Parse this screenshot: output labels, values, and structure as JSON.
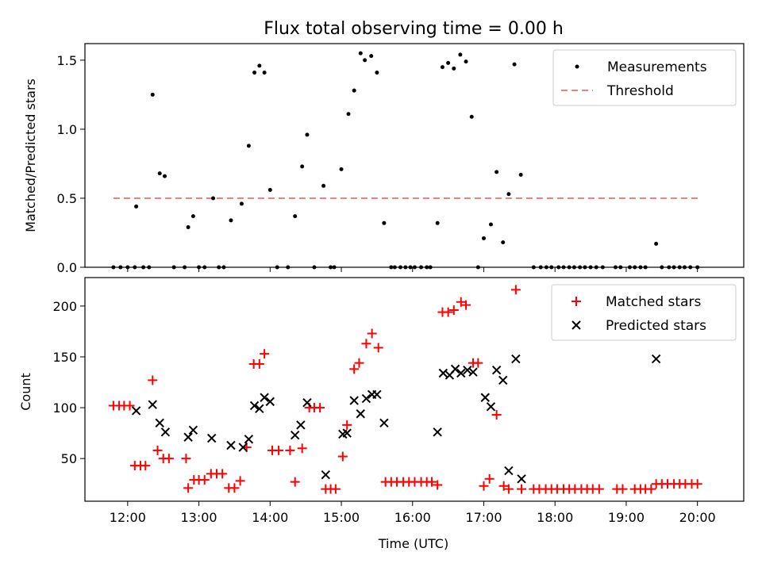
{
  "chart_data": [
    {
      "type": "scatter",
      "title": "Flux total observing time = 0.00 h",
      "xlabel": "",
      "ylabel": "Matched/Predicted stars",
      "x_range_hours": [
        11.4,
        20.65
      ],
      "ylim": [
        0,
        1.62
      ],
      "yticks": [
        0.0,
        0.5,
        1.0,
        1.5
      ],
      "ytick_labels": [
        "0.0",
        "0.5",
        "1.0",
        "1.5"
      ],
      "grid": false,
      "legend_position": "top-right",
      "threshold": {
        "name": "Threshold",
        "value": 0.5,
        "x_start": 11.8,
        "x_end": 20.05,
        "color": "#f08080"
      },
      "series": [
        {
          "name": "Measurements",
          "color": "#000000",
          "x": [
            11.8,
            11.9,
            12.0,
            12.1,
            12.12,
            12.22,
            12.3,
            12.35,
            12.45,
            12.52,
            12.65,
            12.8,
            12.85,
            12.92,
            13.0,
            13.08,
            13.2,
            13.28,
            13.35,
            13.45,
            13.6,
            13.7,
            13.78,
            13.85,
            13.92,
            14.0,
            14.1,
            14.25,
            14.35,
            14.45,
            14.52,
            14.62,
            14.75,
            14.85,
            14.9,
            15.0,
            15.1,
            15.18,
            15.27,
            15.33,
            15.42,
            15.5,
            15.6,
            15.7,
            15.75,
            15.83,
            15.9,
            15.97,
            16.03,
            16.12,
            16.2,
            16.25,
            16.35,
            16.42,
            16.5,
            16.58,
            16.67,
            16.75,
            16.83,
            16.92,
            17.0,
            17.1,
            17.18,
            17.27,
            17.35,
            17.43,
            17.52,
            17.7,
            17.8,
            17.88,
            17.95,
            18.05,
            18.12,
            18.2,
            18.27,
            18.35,
            18.42,
            18.5,
            18.58,
            18.67,
            18.85,
            18.92,
            19.05,
            19.12,
            19.2,
            19.27,
            19.42,
            19.5,
            19.6,
            19.67,
            19.75,
            19.82,
            19.9,
            20.0
          ],
          "y": [
            0,
            0,
            0,
            0,
            0.44,
            0,
            0,
            1.25,
            0.68,
            0.66,
            0,
            0,
            0.29,
            0.37,
            0,
            0,
            0.5,
            0,
            0,
            0.34,
            0.46,
            0.88,
            1.41,
            1.46,
            1.41,
            0.56,
            0,
            0,
            0.37,
            0.73,
            0.96,
            0,
            0.59,
            0,
            0,
            0.71,
            1.11,
            1.28,
            1.55,
            1.5,
            1.53,
            1.41,
            0.32,
            0,
            0,
            0,
            0,
            0,
            0,
            0,
            0,
            0,
            0.32,
            1.45,
            1.48,
            1.44,
            1.54,
            1.49,
            1.09,
            0,
            0.21,
            0.31,
            0.69,
            0.18,
            0.53,
            1.47,
            0.67,
            0,
            0,
            0,
            0,
            0,
            0,
            0,
            0,
            0,
            0,
            0,
            0,
            0,
            0,
            0,
            0,
            0,
            0,
            0,
            0.17,
            0,
            0,
            0,
            0,
            0,
            0,
            0
          ]
        }
      ]
    },
    {
      "type": "scatter",
      "title": "",
      "xlabel": "Time (UTC)",
      "ylabel": "Count",
      "x_range_hours": [
        11.4,
        20.65
      ],
      "ylim": [
        8,
        228
      ],
      "yticks": [
        50,
        100,
        150,
        200
      ],
      "ytick_labels": [
        "50",
        "100",
        "150",
        "200"
      ],
      "xticks": [
        12,
        13,
        14,
        15,
        16,
        17,
        18,
        19,
        20
      ],
      "xtick_labels": [
        "12:00",
        "13:00",
        "14:00",
        "15:00",
        "16:00",
        "17:00",
        "18:00",
        "19:00",
        "20:00"
      ],
      "grid": false,
      "legend_position": "top-right",
      "series": [
        {
          "name": "Matched stars",
          "marker": "+",
          "color": "#ff0000",
          "x": [
            11.8,
            11.88,
            11.95,
            12.03,
            12.1,
            12.18,
            12.25,
            12.35,
            12.42,
            12.5,
            12.58,
            12.82,
            12.85,
            12.93,
            13.0,
            13.08,
            13.17,
            13.25,
            13.33,
            13.42,
            13.5,
            13.58,
            13.67,
            13.77,
            13.85,
            13.92,
            14.03,
            14.12,
            14.28,
            14.35,
            14.45,
            14.55,
            14.62,
            14.7,
            14.78,
            14.85,
            14.92,
            15.02,
            15.08,
            15.18,
            15.25,
            15.35,
            15.43,
            15.52,
            15.62,
            15.7,
            15.78,
            15.87,
            15.95,
            16.03,
            16.12,
            16.2,
            16.27,
            16.35,
            16.42,
            16.5,
            16.58,
            16.68,
            16.75,
            16.85,
            16.92,
            17.0,
            17.08,
            17.18,
            17.28,
            17.35,
            17.45,
            17.53,
            17.7,
            17.78,
            17.87,
            17.95,
            18.03,
            18.12,
            18.2,
            18.28,
            18.37,
            18.45,
            18.53,
            18.62,
            18.87,
            18.95,
            19.12,
            19.2,
            19.27,
            19.35,
            19.42,
            19.5,
            19.58,
            19.67,
            19.75,
            19.83,
            19.92,
            20.0
          ],
          "y": [
            102,
            102,
            102,
            102,
            43,
            43,
            43,
            127,
            58,
            50,
            50,
            50,
            21,
            29,
            29,
            29,
            35,
            35,
            35,
            21,
            21,
            28,
            61,
            143,
            143,
            153,
            58,
            58,
            58,
            27,
            60,
            100,
            100,
            100,
            20,
            20,
            20,
            52,
            83,
            138,
            144,
            163,
            173,
            159,
            27,
            27,
            27,
            27,
            27,
            27,
            27,
            27,
            27,
            24,
            194,
            194,
            196,
            204,
            201,
            144,
            144,
            23,
            30,
            93,
            23,
            20,
            216,
            20,
            20,
            20,
            20,
            20,
            20,
            20,
            20,
            20,
            20,
            20,
            20,
            20,
            20,
            20,
            20,
            20,
            20,
            20,
            25,
            25,
            25,
            25,
            25,
            25,
            25,
            25
          ]
        },
        {
          "name": "Predicted stars",
          "marker": "x",
          "color": "#000000",
          "x": [
            12.12,
            12.35,
            12.45,
            12.53,
            12.85,
            12.92,
            13.18,
            13.45,
            13.62,
            13.7,
            13.78,
            13.85,
            13.92,
            14.0,
            14.35,
            14.43,
            14.52,
            14.78,
            15.02,
            15.08,
            15.18,
            15.27,
            15.35,
            15.43,
            15.5,
            15.6,
            16.35,
            16.43,
            16.52,
            16.6,
            16.68,
            16.77,
            16.85,
            17.02,
            17.1,
            17.18,
            17.27,
            17.35,
            17.45,
            17.53,
            19.42
          ],
          "y": [
            97,
            103,
            85,
            76,
            71,
            78,
            70,
            63,
            61,
            69,
            102,
            99,
            110,
            106,
            73,
            83,
            105,
            34,
            74,
            75,
            107,
            94,
            109,
            113,
            113,
            85,
            76,
            134,
            132,
            138,
            134,
            137,
            135,
            110,
            101,
            137,
            127,
            38,
            148,
            30,
            148
          ]
        }
      ]
    }
  ]
}
